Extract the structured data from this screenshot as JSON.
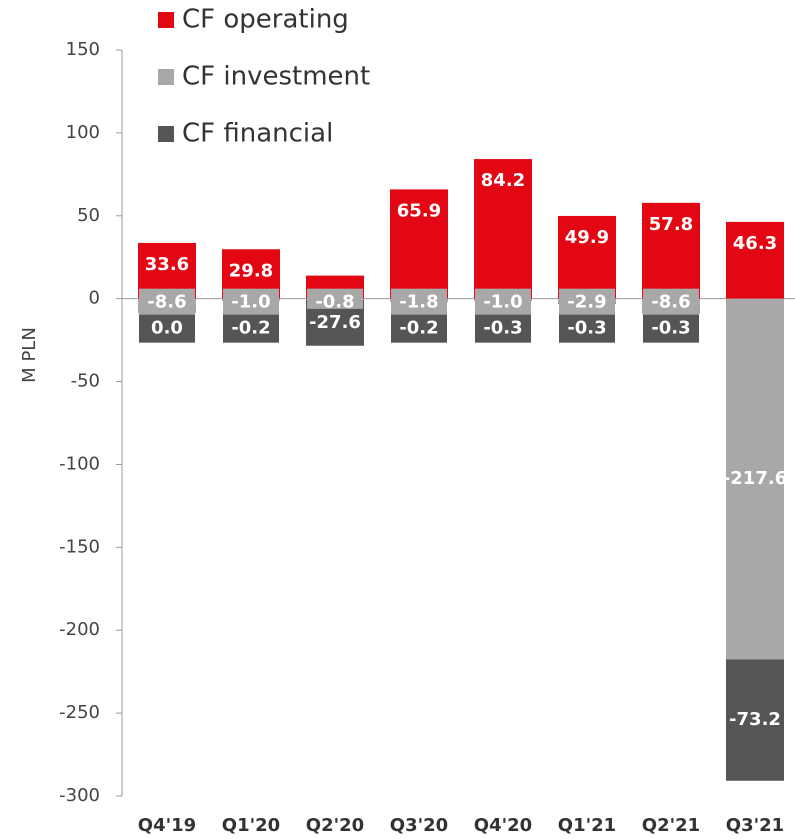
{
  "chart_data": {
    "type": "stacked-bar",
    "y_label": "M PLN",
    "categories": [
      "Q4'19",
      "Q1'20",
      "Q2'20",
      "Q3'20",
      "Q4'20",
      "Q1'21",
      "Q2'21",
      "Q3'21"
    ],
    "series": [
      {
        "name": "CF operating",
        "color": "#e30613",
        "values": [
          33.6,
          29.8,
          13.9,
          65.9,
          84.2,
          49.9,
          57.8,
          46.3
        ]
      },
      {
        "name": "CF investment",
        "color": "#a8a8a8",
        "values": [
          -8.6,
          -1.0,
          -0.8,
          -1.8,
          -1.0,
          -2.9,
          -8.6,
          -217.6
        ],
        "value_labels": [
          "-8.6",
          "-1.0",
          "-0.8",
          "-1.8",
          "-1.0",
          "-2.9",
          "-8.6",
          "-217.6"
        ]
      },
      {
        "name": "CF financial",
        "color": "#555555",
        "values": [
          0.0,
          -0.2,
          -27.6,
          -0.2,
          -0.3,
          -0.3,
          -0.3,
          -73.2
        ],
        "value_labels": [
          "0.0",
          "-0.2",
          "-27.6",
          "-0.2",
          "-0.3",
          "-0.3",
          "-0.3",
          "-73.2"
        ]
      }
    ],
    "ylim": [
      -300,
      150
    ],
    "yticks": [
      150,
      100,
      50,
      0,
      -50,
      -100,
      -150,
      -200,
      -250,
      -300
    ],
    "legend": "top-left"
  }
}
